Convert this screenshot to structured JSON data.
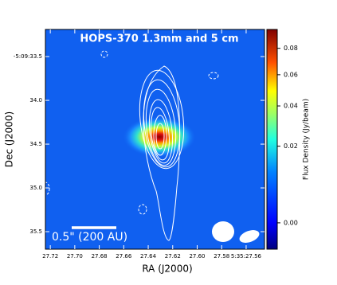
{
  "chart_data": {
    "type": "image",
    "title": "HOPS-370 1.3mm and 5 cm",
    "xlabel": "RA (J2000)",
    "ylabel": "Dec (J2000)",
    "xlim": [
      27.724,
      27.545
    ],
    "xticks": [
      27.72,
      {
        "value": 27.7,
        "label": "27.70"
      },
      27.68,
      27.66,
      27.64,
      27.62,
      {
        "value": 27.6,
        "label": "27.60"
      },
      27.58,
      {
        "value": 27.56,
        "label": "5:35:27.56"
      }
    ],
    "ylim": [
      35.7,
      33.19
    ],
    "yticks": [
      {
        "value": 33.5,
        "label": "-5:09:33.5"
      },
      {
        "value": 34,
        "label": "34.0"
      },
      34.5,
      {
        "value": 35,
        "label": "35.0"
      },
      35.5
    ],
    "colorbar": {
      "label": "Flux Density (Jy/beam)",
      "clim": [
        -0.0014,
        0.096
      ],
      "stretch": "sqrt",
      "ticks": [
        {
          "value": 0,
          "label": "0.00"
        },
        0.02,
        0.04,
        0.06,
        0.08
      ]
    },
    "scalebar_label": "0.5\" (200 AU)"
  }
}
